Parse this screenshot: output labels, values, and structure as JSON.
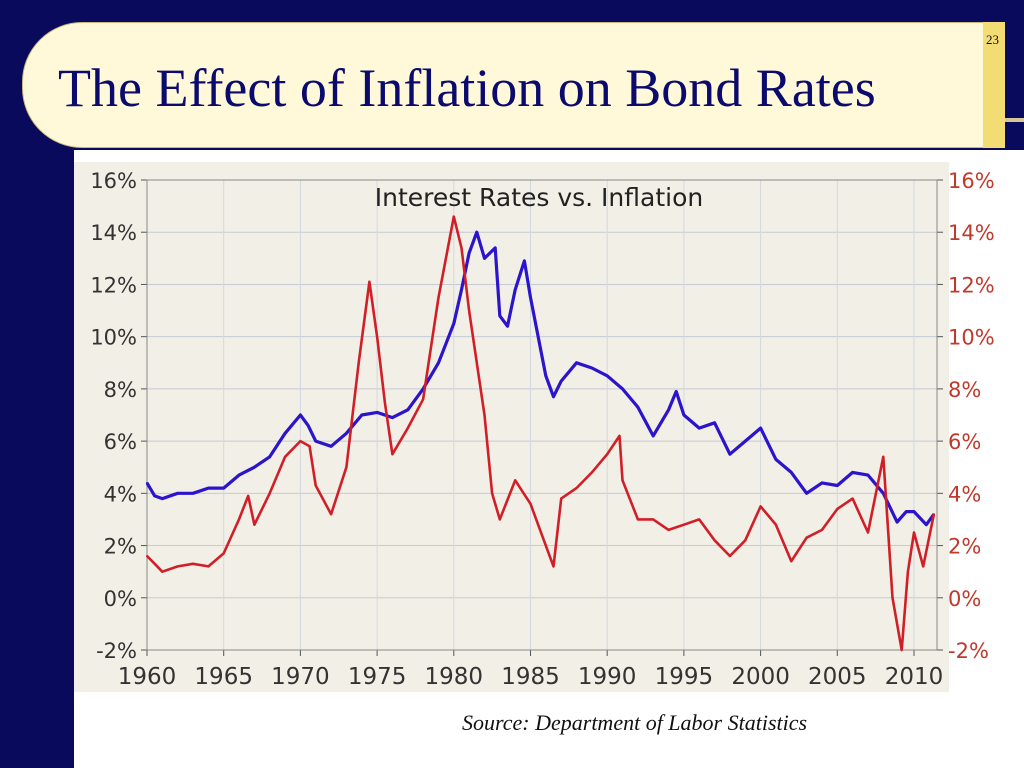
{
  "slide": {
    "title": "The Effect of Inflation on Bond Rates",
    "number": "23",
    "source": "Source: Department of Labor Statistics"
  },
  "colors": {
    "navy": "#0a0a5c",
    "title_text": "#0b0b6e",
    "title_bg": "#fff9d9",
    "accent_tab": "#f3dc73",
    "interest_line": "#2b14cc",
    "inflation_line": "#d11f28"
  },
  "chart_data": {
    "type": "line",
    "title": "Interest Rates vs. Inflation",
    "xlim": [
      1960,
      2011.5
    ],
    "ylim": [
      -2,
      16
    ],
    "x_ticks": [
      1960,
      1965,
      1970,
      1975,
      1980,
      1985,
      1990,
      1995,
      2000,
      2005,
      2010
    ],
    "y_ticks": [
      -2,
      0,
      2,
      4,
      6,
      8,
      10,
      12,
      14,
      16
    ],
    "y_tick_labels": [
      "-2%",
      "0%",
      "2%",
      "4%",
      "6%",
      "8%",
      "10%",
      "12%",
      "14%",
      "16%"
    ],
    "x_tick_labels": [
      "1960",
      "1965",
      "1970",
      "1975",
      "1980",
      "1985",
      "1990",
      "1995",
      "2000",
      "2005",
      "2010"
    ],
    "grid": true,
    "legend": "none",
    "series": [
      {
        "color": "#2b14cc",
        "points": [
          [
            1960,
            4.4
          ],
          [
            1960.5,
            3.9
          ],
          [
            1961,
            3.8
          ],
          [
            1962,
            4.0
          ],
          [
            1963,
            4.0
          ],
          [
            1964,
            4.2
          ],
          [
            1965,
            4.2
          ],
          [
            1966,
            4.7
          ],
          [
            1967,
            5.0
          ],
          [
            1968,
            5.4
          ],
          [
            1969,
            6.3
          ],
          [
            1970,
            7.0
          ],
          [
            1970.5,
            6.6
          ],
          [
            1971,
            6.0
          ],
          [
            1972,
            5.8
          ],
          [
            1973,
            6.3
          ],
          [
            1974,
            7.0
          ],
          [
            1975,
            7.1
          ],
          [
            1976,
            6.9
          ],
          [
            1977,
            7.2
          ],
          [
            1978,
            8.0
          ],
          [
            1979,
            9.0
          ],
          [
            1980,
            10.5
          ],
          [
            1980.5,
            11.8
          ],
          [
            1981,
            13.2
          ],
          [
            1981.5,
            14.0
          ],
          [
            1982,
            13.0
          ],
          [
            1982.7,
            13.4
          ],
          [
            1983,
            10.8
          ],
          [
            1983.5,
            10.4
          ],
          [
            1984,
            11.8
          ],
          [
            1984.6,
            12.9
          ],
          [
            1985,
            11.5
          ],
          [
            1986,
            8.5
          ],
          [
            1986.5,
            7.7
          ],
          [
            1987,
            8.3
          ],
          [
            1988,
            9.0
          ],
          [
            1989,
            8.8
          ],
          [
            1990,
            8.5
          ],
          [
            1991,
            8.0
          ],
          [
            1992,
            7.3
          ],
          [
            1993,
            6.2
          ],
          [
            1994,
            7.2
          ],
          [
            1994.5,
            7.9
          ],
          [
            1995,
            7.0
          ],
          [
            1996,
            6.5
          ],
          [
            1997,
            6.7
          ],
          [
            1998,
            5.5
          ],
          [
            1999,
            6.0
          ],
          [
            2000,
            6.5
          ],
          [
            2001,
            5.3
          ],
          [
            2002,
            4.8
          ],
          [
            2003,
            4.0
          ],
          [
            2004,
            4.4
          ],
          [
            2005,
            4.3
          ],
          [
            2006,
            4.8
          ],
          [
            2007,
            4.7
          ],
          [
            2008,
            4.0
          ],
          [
            2008.9,
            2.9
          ],
          [
            2009.5,
            3.3
          ],
          [
            2010,
            3.3
          ],
          [
            2010.8,
            2.8
          ],
          [
            2011.3,
            3.2
          ]
        ]
      },
      {
        "color": "#d11f28",
        "points": [
          [
            1960,
            1.6
          ],
          [
            1960.5,
            1.3
          ],
          [
            1961,
            1.0
          ],
          [
            1962,
            1.2
          ],
          [
            1963,
            1.3
          ],
          [
            1964,
            1.2
          ],
          [
            1965,
            1.7
          ],
          [
            1966,
            3.0
          ],
          [
            1966.6,
            3.9
          ],
          [
            1967,
            2.8
          ],
          [
            1968,
            4.0
          ],
          [
            1969,
            5.4
          ],
          [
            1970,
            6.0
          ],
          [
            1970.6,
            5.8
          ],
          [
            1971,
            4.3
          ],
          [
            1972,
            3.2
          ],
          [
            1973,
            5.0
          ],
          [
            1973.8,
            9.0
          ],
          [
            1974.5,
            12.1
          ],
          [
            1975,
            10.0
          ],
          [
            1975.5,
            7.5
          ],
          [
            1976,
            5.5
          ],
          [
            1977,
            6.5
          ],
          [
            1978,
            7.6
          ],
          [
            1979,
            11.5
          ],
          [
            1980,
            14.6
          ],
          [
            1980.5,
            13.4
          ],
          [
            1981,
            11.0
          ],
          [
            1982,
            7.0
          ],
          [
            1982.5,
            4.0
          ],
          [
            1983,
            3.0
          ],
          [
            1984,
            4.5
          ],
          [
            1985,
            3.6
          ],
          [
            1986,
            2.0
          ],
          [
            1986.5,
            1.2
          ],
          [
            1987,
            3.8
          ],
          [
            1988,
            4.2
          ],
          [
            1989,
            4.8
          ],
          [
            1990,
            5.5
          ],
          [
            1990.8,
            6.2
          ],
          [
            1991,
            4.5
          ],
          [
            1992,
            3.0
          ],
          [
            1993,
            3.0
          ],
          [
            1994,
            2.6
          ],
          [
            1995,
            2.8
          ],
          [
            1996,
            3.0
          ],
          [
            1997,
            2.2
          ],
          [
            1998,
            1.6
          ],
          [
            1999,
            2.2
          ],
          [
            2000,
            3.5
          ],
          [
            2001,
            2.8
          ],
          [
            2002,
            1.4
          ],
          [
            2003,
            2.3
          ],
          [
            2004,
            2.6
          ],
          [
            2005,
            3.4
          ],
          [
            2006,
            3.8
          ],
          [
            2007,
            2.5
          ],
          [
            2008,
            5.4
          ],
          [
            2008.6,
            0.0
          ],
          [
            2009.2,
            -2.0
          ],
          [
            2009.6,
            1.0
          ],
          [
            2010,
            2.5
          ],
          [
            2010.6,
            1.2
          ],
          [
            2011.3,
            3.2
          ]
        ]
      }
    ]
  }
}
